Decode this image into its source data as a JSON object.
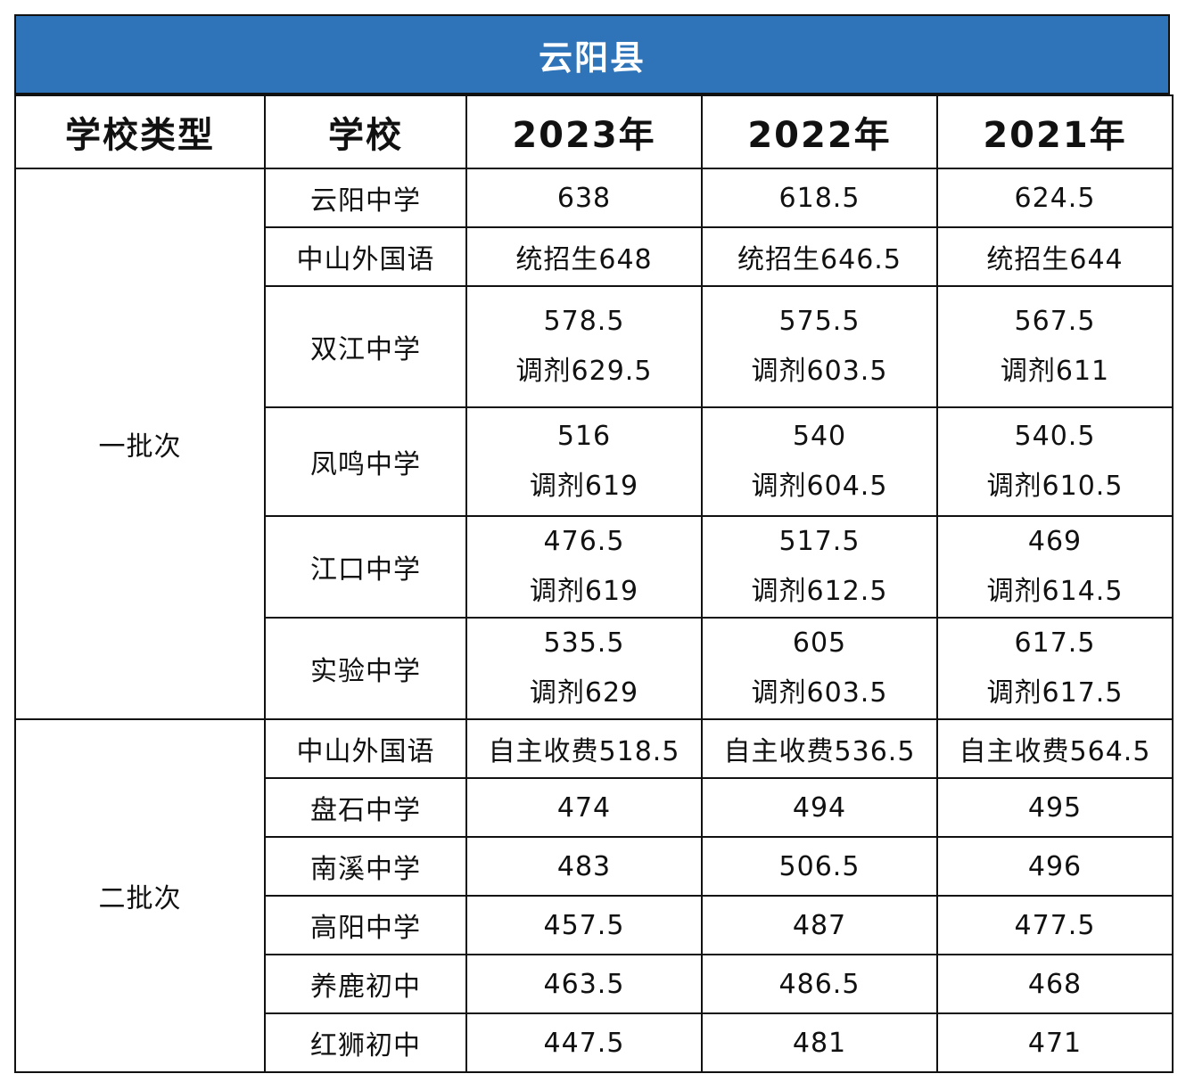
{
  "title": "云阳县",
  "headers": {
    "type": "学校类型",
    "school": "学校",
    "y2023": "2023年",
    "y2022": "2022年",
    "y2021": "2021年"
  },
  "groups": [
    {
      "category": "一批次",
      "rows": [
        {
          "school": "云阳中学",
          "y2023": [
            "638"
          ],
          "y2022": [
            "618.5"
          ],
          "y2021": [
            "624.5"
          ]
        },
        {
          "school": "中山外国语",
          "y2023": [
            "统招生648"
          ],
          "y2022": [
            "统招生646.5"
          ],
          "y2021": [
            "统招生644"
          ]
        },
        {
          "school": "双江中学",
          "y2023": [
            "578.5",
            "调剂629.5"
          ],
          "y2022": [
            "575.5",
            "调剂603.5"
          ],
          "y2021": [
            "567.5",
            "调剂611"
          ]
        },
        {
          "school": "凤鸣中学",
          "y2023": [
            "516",
            "调剂619"
          ],
          "y2022": [
            "540",
            "调剂604.5"
          ],
          "y2021": [
            "540.5",
            "调剂610.5"
          ]
        },
        {
          "school": "江口中学",
          "y2023": [
            "476.5",
            "调剂619"
          ],
          "y2022": [
            "517.5",
            "调剂612.5"
          ],
          "y2021": [
            "469",
            "调剂614.5"
          ]
        },
        {
          "school": "实验中学",
          "y2023": [
            "535.5",
            "调剂629"
          ],
          "y2022": [
            "605",
            "调剂603.5"
          ],
          "y2021": [
            "617.5",
            "调剂617.5"
          ]
        }
      ]
    },
    {
      "category": "二批次",
      "rows": [
        {
          "school": "中山外国语",
          "y2023": [
            "自主收费518.5"
          ],
          "y2022": [
            "自主收费536.5"
          ],
          "y2021": [
            "自主收费564.5"
          ]
        },
        {
          "school": "盘石中学",
          "y2023": [
            "474"
          ],
          "y2022": [
            "494"
          ],
          "y2021": [
            "495"
          ]
        },
        {
          "school": "南溪中学",
          "y2023": [
            "483"
          ],
          "y2022": [
            "506.5"
          ],
          "y2021": [
            "496"
          ]
        },
        {
          "school": "高阳中学",
          "y2023": [
            "457.5"
          ],
          "y2022": [
            "487"
          ],
          "y2021": [
            "477.5"
          ]
        },
        {
          "school": "养鹿初中",
          "y2023": [
            "463.5"
          ],
          "y2022": [
            "486.5"
          ],
          "y2021": [
            "468"
          ]
        },
        {
          "school": "红狮初中",
          "y2023": [
            "447.5"
          ],
          "y2022": [
            "481"
          ],
          "y2021": [
            "471"
          ]
        }
      ]
    }
  ]
}
